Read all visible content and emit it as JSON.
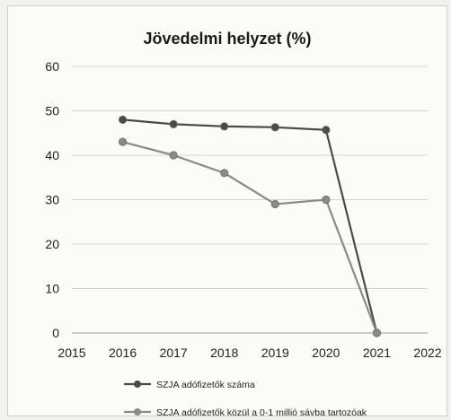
{
  "chart_data": {
    "type": "line",
    "title": "Jövedelmi helyzet (%)",
    "xlabel": "",
    "ylabel": "",
    "xlim": [
      2015,
      2022
    ],
    "ylim": [
      0,
      60
    ],
    "xticks": [
      "2015",
      "2016",
      "2017",
      "2018",
      "2019",
      "2020",
      "2021",
      "2022"
    ],
    "yticks": [
      "0",
      "10",
      "20",
      "30",
      "40",
      "50",
      "60"
    ],
    "grid": true,
    "legend_position": "bottom",
    "x": [
      2016,
      2017,
      2018,
      2019,
      2020,
      2021
    ],
    "series": [
      {
        "name": "SZJA adófizetők száma",
        "values": [
          48,
          47,
          46.5,
          46.3,
          45.7,
          0
        ],
        "color": "#4a4a4a"
      },
      {
        "name": "SZJA adófizetők közül a 0-1 millió sávba tartozóak",
        "values": [
          43,
          40,
          36,
          29,
          30,
          0
        ],
        "color": "#8a8a8a"
      }
    ]
  }
}
